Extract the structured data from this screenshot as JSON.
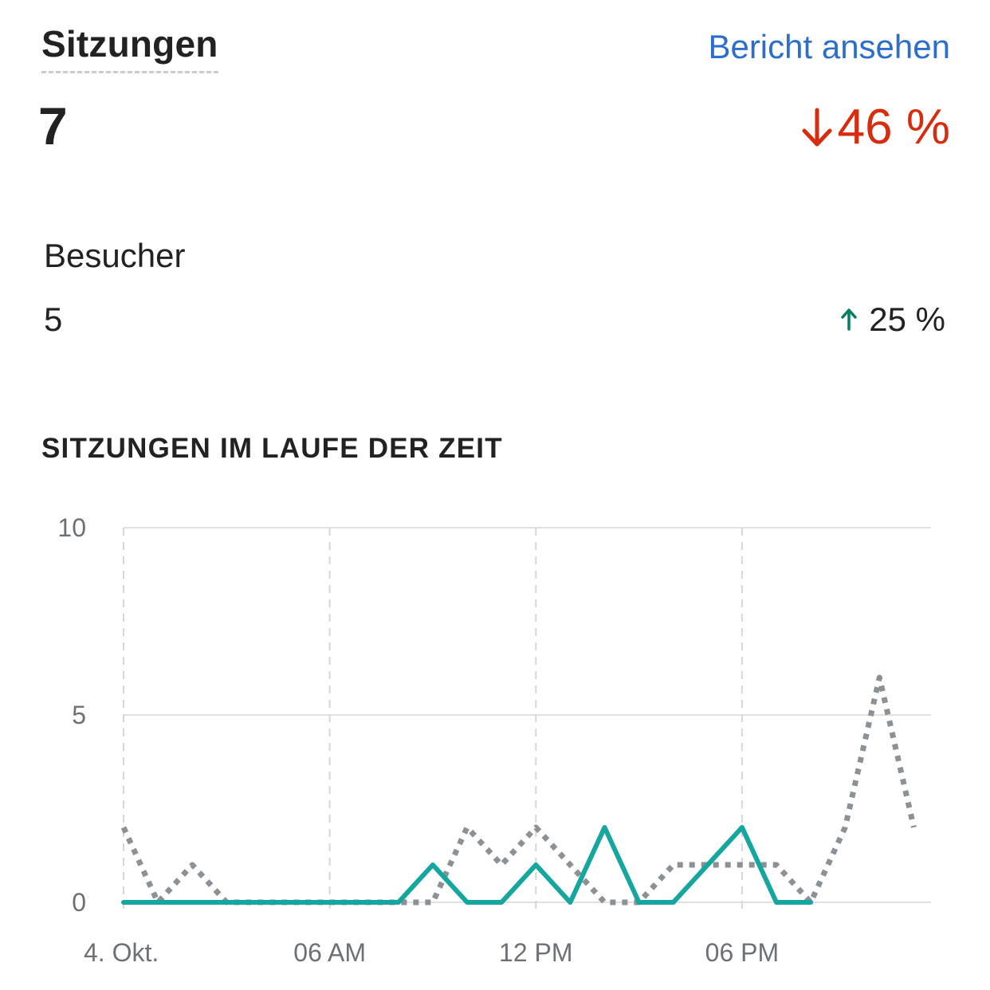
{
  "header": {
    "title": "Sitzungen",
    "report_link": "Bericht ansehen"
  },
  "primary_metric": {
    "value": "7",
    "change": "46 %",
    "direction": "down",
    "color": "#d72c0d"
  },
  "secondary_metric": {
    "label": "Besucher",
    "value": "5",
    "change": "25 %",
    "direction": "up",
    "color": "#008060"
  },
  "section_title": "SITZUNGEN IM LAUFE DER ZEIT",
  "chart_data": {
    "type": "line",
    "x": [
      0,
      1,
      2,
      3,
      4,
      5,
      6,
      7,
      8,
      9,
      10,
      11,
      12,
      13,
      14,
      15,
      16,
      17,
      18,
      19,
      20,
      21,
      22,
      23
    ],
    "x_tick_positions": [
      0,
      6,
      12,
      18
    ],
    "x_tick_labels": [
      "4. Okt.",
      "06 AM",
      "12 PM",
      "06 PM"
    ],
    "y_ticks": [
      0,
      5,
      10
    ],
    "ylim": [
      0,
      10
    ],
    "grid": true,
    "series": [
      {
        "style": "solid",
        "color": "#16a6a0",
        "values": [
          0,
          0,
          0,
          0,
          0,
          0,
          0,
          0,
          0,
          1,
          0,
          0,
          1,
          0,
          2,
          0,
          0,
          1,
          2,
          0,
          0,
          null,
          null,
          null
        ]
      },
      {
        "style": "dotted",
        "color": "#8c9196",
        "values": [
          2,
          0,
          1,
          0,
          0,
          0,
          0,
          0,
          0,
          0,
          2,
          1,
          2,
          1,
          0,
          0,
          1,
          1,
          1,
          1,
          0,
          2,
          6,
          2
        ]
      }
    ]
  }
}
